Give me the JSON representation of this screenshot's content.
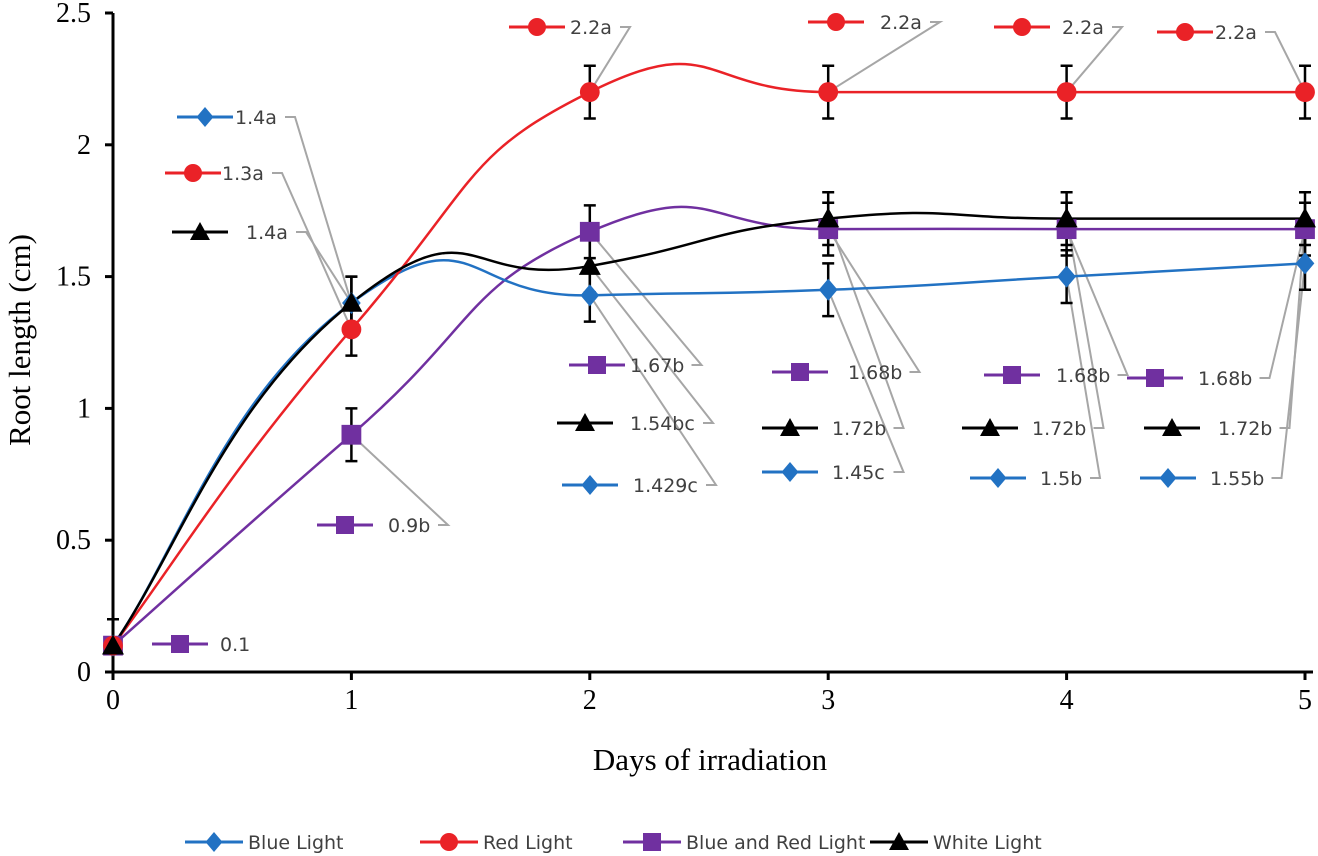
{
  "chart_data": {
    "type": "line",
    "title": "",
    "xlabel": "Days of irradiation",
    "ylabel": "Root length (cm)",
    "x": [
      0,
      1,
      2,
      3,
      4,
      5
    ],
    "xlim": [
      0,
      5
    ],
    "ylim": [
      0,
      2.5
    ],
    "x_ticks": [
      "0",
      "1",
      "2",
      "3",
      "4",
      "5"
    ],
    "y_ticks": [
      "0",
      "0.5",
      "1",
      "1.5",
      "2",
      "2.5"
    ],
    "grid": false,
    "smoothed": true,
    "error_bar": 0.1,
    "legend_position": "bottom",
    "series": [
      {
        "name": "Blue Light",
        "color": "#2272c3",
        "marker": "diamond",
        "values": [
          0.1,
          1.4,
          1.429,
          1.45,
          1.5,
          1.55
        ],
        "labels": [
          "",
          "1.4a",
          "1.429c",
          "1.45c",
          "1.5b",
          "1.55b"
        ]
      },
      {
        "name": "Red Light",
        "color": "#ea2227",
        "marker": "circle",
        "values": [
          0.1,
          1.3,
          2.2,
          2.2,
          2.2,
          2.2
        ],
        "labels": [
          "",
          "1.3a",
          "2.2a",
          "2.2a",
          "2.2a",
          "2.2a"
        ]
      },
      {
        "name": "Blue and Red Light",
        "color": "#7030a0",
        "marker": "square",
        "values": [
          0.1,
          0.9,
          1.67,
          1.68,
          1.68,
          1.68
        ],
        "labels": [
          "0.1",
          "0.9b",
          "1.67b",
          "1.68b",
          "1.68b",
          "1.68b"
        ]
      },
      {
        "name": "White Light",
        "color": "#000000",
        "marker": "triangle",
        "values": [
          0.1,
          1.4,
          1.54,
          1.72,
          1.72,
          1.72
        ],
        "labels": [
          "",
          "1.4a",
          "1.54bc",
          "1.72b",
          "1.72b",
          "1.72b"
        ]
      }
    ]
  }
}
